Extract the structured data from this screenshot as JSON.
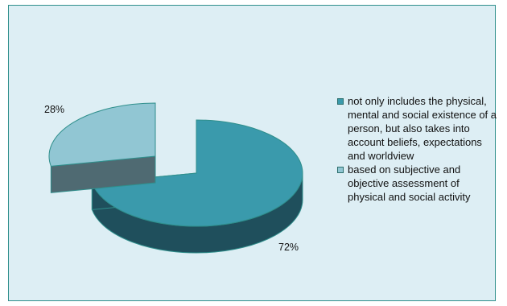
{
  "chart_data": {
    "type": "pie",
    "style": "3d-exploded",
    "title": "",
    "slices": [
      {
        "label": "not only includes the physical, mental and social existence of a person, but also takes into account beliefs, expectations and worldview",
        "value": 72,
        "value_label": "72%",
        "color": "#3a9aac",
        "side_color": "#1f4f5c"
      },
      {
        "label": "based on subjective and objective assessment of physical and social activity",
        "value": 28,
        "value_label": "28%",
        "color": "#91c6d3",
        "side_color": "#4f6a72"
      }
    ],
    "legend_position": "right"
  },
  "colors": {
    "background": "#ddeef4",
    "border": "#2f8f8c",
    "rim": "#2f8f8c"
  }
}
